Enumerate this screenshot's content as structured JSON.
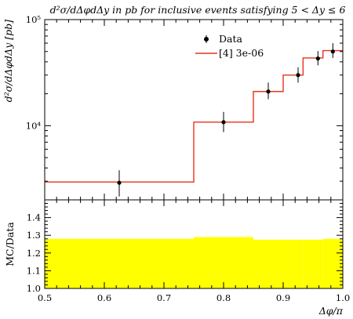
{
  "chart_data": [
    {
      "type": "line",
      "title": "d²σ/dΔφdΔy in pb for inclusive events satisfying 5 < Δy ≤ 6",
      "ylabel": "d²σ/dΔφdΔy [pb]",
      "xlim": [
        0.5,
        1.0
      ],
      "ylim": [
        2000,
        100000
      ],
      "yscale": "log",
      "y_tick_labels": [
        "10⁴",
        "10⁵"
      ],
      "y_tick_values": [
        10000,
        100000
      ],
      "legend_placement": "top-right",
      "legend": [
        {
          "label": "Data",
          "color": "#000000"
        },
        {
          "label": "[4] 3e-06",
          "color": "#e8331c"
        }
      ],
      "series": [
        {
          "name": "Data",
          "type": "scatter",
          "x": [
            0.625,
            0.8,
            0.875,
            0.925,
            0.9583,
            0.9833
          ],
          "y": [
            2900,
            10800,
            21000,
            30000,
            43000,
            50000
          ],
          "yerr_low": [
            2150,
            8700,
            17800,
            25500,
            37000,
            43500
          ],
          "yerr_high": [
            3800,
            13500,
            25500,
            35500,
            50500,
            60000
          ]
        },
        {
          "name": "[4] 3e-06",
          "type": "step",
          "color": "#e8331c",
          "edges": [
            0.5,
            0.75,
            0.85,
            0.9,
            0.9333,
            0.9667,
            1.0
          ],
          "values": [
            2950,
            10800,
            21000,
            30000,
            43500,
            51000
          ]
        }
      ]
    },
    {
      "type": "area",
      "ylabel": "MC/Data",
      "xlabel": "Δφ/π",
      "xlim": [
        0.5,
        1.0
      ],
      "ylim": [
        1.0,
        1.5
      ],
      "x_tick_labels": [
        "0.5",
        "0.6",
        "0.7",
        "0.8",
        "0.9",
        "1.0"
      ],
      "x_tick_values": [
        0.5,
        0.6,
        0.7,
        0.8,
        0.9,
        1.0
      ],
      "y_tick_labels": [
        "1.0",
        "1.1",
        "1.2",
        "1.3",
        "1.4"
      ],
      "y_tick_values": [
        1.0,
        1.1,
        1.2,
        1.3,
        1.4
      ],
      "series": [
        {
          "name": "ratio-band",
          "color": "#ffff00",
          "edges": [
            0.5,
            0.75,
            0.85,
            0.9,
            0.9333,
            0.9667,
            1.0
          ],
          "upper": [
            1.28,
            1.29,
            1.275,
            1.275,
            1.275,
            1.28
          ],
          "lower": [
            1.0,
            1.0,
            1.0,
            1.0,
            1.0,
            1.0
          ]
        }
      ]
    }
  ]
}
